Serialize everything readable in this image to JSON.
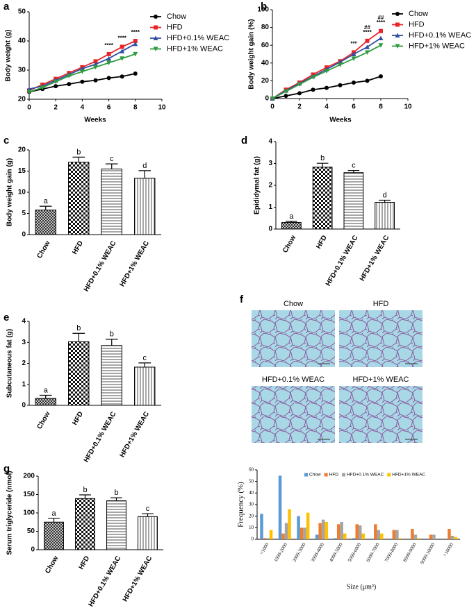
{
  "chart_data": [
    {
      "type": "line",
      "panel": "a",
      "x_label": "Weeks",
      "y_label": "Body weight (g)",
      "x": [
        0,
        1,
        2,
        3,
        4,
        5,
        6,
        7,
        8
      ],
      "xlim": [
        0,
        10
      ],
      "xticks": [
        0,
        2,
        4,
        6,
        8,
        10
      ],
      "ylim": [
        20,
        50
      ],
      "yticks": [
        20,
        30,
        40,
        50
      ],
      "series": [
        {
          "name": "Chow",
          "color": "#000000",
          "marker": "circle",
          "values": [
            22.5,
            23.5,
            24.5,
            25.2,
            26,
            26.5,
            27.3,
            27.8,
            28.8
          ]
        },
        {
          "name": "HFD",
          "color": "#e8262a",
          "marker": "square",
          "values": [
            23,
            25,
            27,
            29,
            31,
            33,
            35.5,
            38,
            40
          ]
        },
        {
          "name": "HFD+0.1% WEAC",
          "color": "#2e4fa3",
          "marker": "triangle-up",
          "values": [
            23.5,
            24.5,
            26.5,
            28.5,
            30.5,
            32,
            34,
            36.5,
            39
          ]
        },
        {
          "name": "HFD+1% WEAC",
          "color": "#2e9b3e",
          "marker": "triangle-down",
          "values": [
            22.5,
            24,
            26,
            28,
            29.5,
            31,
            32.5,
            34,
            35.5
          ]
        }
      ],
      "annotations": [
        {
          "x": 6,
          "text": "****"
        },
        {
          "x": 7,
          "text": "****"
        },
        {
          "x": 8,
          "text": "****"
        }
      ]
    },
    {
      "type": "line",
      "panel": "b",
      "x_label": "Weeks",
      "y_label": "Body weight gain (%)",
      "x": [
        0,
        1,
        2,
        3,
        4,
        5,
        6,
        7,
        8
      ],
      "xlim": [
        0,
        10
      ],
      "xticks": [
        0,
        2,
        4,
        6,
        8,
        10
      ],
      "ylim": [
        0,
        100
      ],
      "yticks": [
        0,
        20,
        40,
        60,
        80,
        100
      ],
      "series": [
        {
          "name": "Chow",
          "color": "#000000",
          "marker": "circle",
          "values": [
            0,
            3,
            6,
            10,
            12,
            15,
            18,
            20,
            25
          ]
        },
        {
          "name": "HFD",
          "color": "#e8262a",
          "marker": "square",
          "values": [
            0,
            10,
            18,
            27,
            35,
            42,
            52,
            65,
            76
          ]
        },
        {
          "name": "HFD+0.1% WEAC",
          "color": "#2e4fa3",
          "marker": "triangle-up",
          "values": [
            0,
            9,
            17,
            25,
            33,
            41,
            50,
            58,
            68
          ]
        },
        {
          "name": "HFD+1% WEAC",
          "color": "#2e9b3e",
          "marker": "triangle-down",
          "values": [
            0,
            8,
            16,
            24,
            31,
            38,
            45,
            52,
            60
          ]
        }
      ],
      "annotations": [
        {
          "x": 6,
          "text": "***"
        },
        {
          "x": 7,
          "text": "****"
        },
        {
          "x": 7,
          "text": "##"
        },
        {
          "x": 8,
          "text": "****"
        },
        {
          "x": 8,
          "text": "##"
        }
      ]
    },
    {
      "type": "bar",
      "panel": "c",
      "y_label": "Body weight gain (g)",
      "categories": [
        "Chow",
        "HFD",
        "HFD+0.1% WEAC",
        "HFD+1% WEAC"
      ],
      "values": [
        5.8,
        17.1,
        15.5,
        13.3
      ],
      "errors": [
        0.9,
        1.2,
        1.2,
        1.8
      ],
      "letters": [
        "a",
        "b",
        "c",
        "d"
      ],
      "patterns": [
        "dots",
        "checker",
        "hlines",
        "vlines"
      ],
      "ylim": [
        0,
        20
      ],
      "yticks": [
        0,
        5,
        10,
        15,
        20
      ]
    },
    {
      "type": "bar",
      "panel": "d",
      "y_label": "Epididymal fat (g)",
      "categories": [
        "Chow",
        "HFD",
        "HFD+0.1% WEAC",
        "HFD+1% WEAC"
      ],
      "values": [
        0.3,
        2.83,
        2.58,
        1.22
      ],
      "errors": [
        0.05,
        0.18,
        0.1,
        0.1
      ],
      "letters": [
        "a",
        "b",
        "c",
        "d"
      ],
      "patterns": [
        "dots",
        "checker",
        "hlines",
        "vlines"
      ],
      "ylim": [
        0,
        4
      ],
      "yticks": [
        0,
        1,
        2,
        3,
        4
      ]
    },
    {
      "type": "bar",
      "panel": "e",
      "y_label": "Subcutaneous fat (g)",
      "categories": [
        "Chow",
        "HFD",
        "HFD+0.1% WEAC",
        "HFD+1% WEAC"
      ],
      "values": [
        0.33,
        3.03,
        2.85,
        1.82
      ],
      "errors": [
        0.15,
        0.4,
        0.3,
        0.2
      ],
      "letters": [
        "a",
        "b",
        "b",
        "c"
      ],
      "patterns": [
        "dots",
        "checker",
        "hlines",
        "vlines"
      ],
      "ylim": [
        0,
        4
      ],
      "yticks": [
        0,
        1,
        2,
        3,
        4
      ]
    },
    {
      "type": "bar",
      "panel": "g",
      "y_label": "Serum triglyceride (nmol)",
      "categories": [
        "Chow",
        "HFD",
        "HFD+0.1% WEAC",
        "HFD+1% WEAC"
      ],
      "values": [
        75,
        139,
        133,
        90
      ],
      "errors": [
        10,
        10,
        8,
        8
      ],
      "letters": [
        "a",
        "b",
        "b",
        "c"
      ],
      "patterns": [
        "dots",
        "checker",
        "hlines",
        "vlines"
      ],
      "ylim": [
        0,
        200
      ],
      "yticks": [
        0,
        50,
        100,
        150,
        200
      ]
    },
    {
      "type": "grouped_bar",
      "x_label": "Size (μm²)",
      "y_label": "Frequency (%)",
      "categories": [
        "<1000",
        "1000-2000",
        "2000-3000",
        "3000-4000",
        "4000-5000",
        "5000-6000",
        "6000-7000",
        "7000-8000",
        "8000-9000",
        "9000-10000",
        ">10000"
      ],
      "ylim": [
        0,
        60
      ],
      "yticks": [
        0,
        10,
        20,
        30,
        40,
        50,
        60
      ],
      "series": [
        {
          "name": "Chow",
          "color": "#5b9bd5",
          "values": [
            22,
            55,
            20,
            4,
            1,
            1,
            0,
            0,
            0,
            0,
            0
          ]
        },
        {
          "name": "HFD",
          "color": "#ed7d31",
          "values": [
            1,
            5,
            10,
            14,
            13,
            13,
            13,
            8,
            9,
            4,
            9
          ]
        },
        {
          "name": "HFD+0.1% WEAC",
          "color": "#a5a5a5",
          "values": [
            1,
            14,
            10,
            17,
            15,
            12,
            8,
            8,
            4,
            4,
            3
          ]
        },
        {
          "name": "HFD+1% WEAC",
          "color": "#ffc000",
          "values": [
            8,
            26,
            23,
            15,
            5,
            5,
            5,
            1,
            1,
            0,
            2
          ]
        }
      ]
    }
  ],
  "histology": {
    "panel": "f",
    "captions": [
      "Chow",
      "HFD",
      "HFD+0.1% WEAC",
      "HFD+1% WEAC"
    ]
  }
}
